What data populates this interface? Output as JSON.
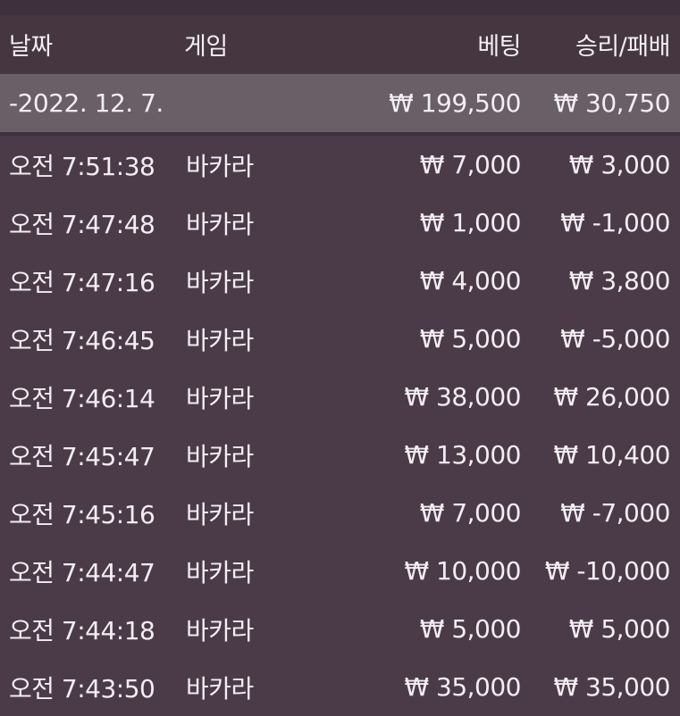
{
  "header": {
    "date": "날짜",
    "game": "게임",
    "bet": "베팅",
    "result": "승리/패배"
  },
  "summary": {
    "date": "-2022. 12. 7.",
    "bet": "₩ 199,500",
    "result": "₩ 30,750"
  },
  "rows": [
    {
      "time": "오전 7:51:38",
      "game": "바카라",
      "bet": "₩ 7,000",
      "result": "₩ 3,000"
    },
    {
      "time": "오전 7:47:48",
      "game": "바카라",
      "bet": "₩ 1,000",
      "result": "₩ -1,000"
    },
    {
      "time": "오전 7:47:16",
      "game": "바카라",
      "bet": "₩ 4,000",
      "result": "₩ 3,800"
    },
    {
      "time": "오전 7:46:45",
      "game": "바카라",
      "bet": "₩ 5,000",
      "result": "₩ -5,000"
    },
    {
      "time": "오전 7:46:14",
      "game": "바카라",
      "bet": "₩ 38,000",
      "result": "₩ 26,000"
    },
    {
      "time": "오전 7:45:47",
      "game": "바카라",
      "bet": "₩ 13,000",
      "result": "₩ 10,400"
    },
    {
      "time": "오전 7:45:16",
      "game": "바카라",
      "bet": "₩ 7,000",
      "result": "₩ -7,000"
    },
    {
      "time": "오전 7:44:47",
      "game": "바카라",
      "bet": "₩ 10,000",
      "result": "₩ -10,000"
    },
    {
      "time": "오전 7:44:18",
      "game": "바카라",
      "bet": "₩ 5,000",
      "result": "₩ 5,000"
    },
    {
      "time": "오전 7:43:50",
      "game": "바카라",
      "bet": "₩ 35,000",
      "result": "₩ 35,000"
    }
  ]
}
